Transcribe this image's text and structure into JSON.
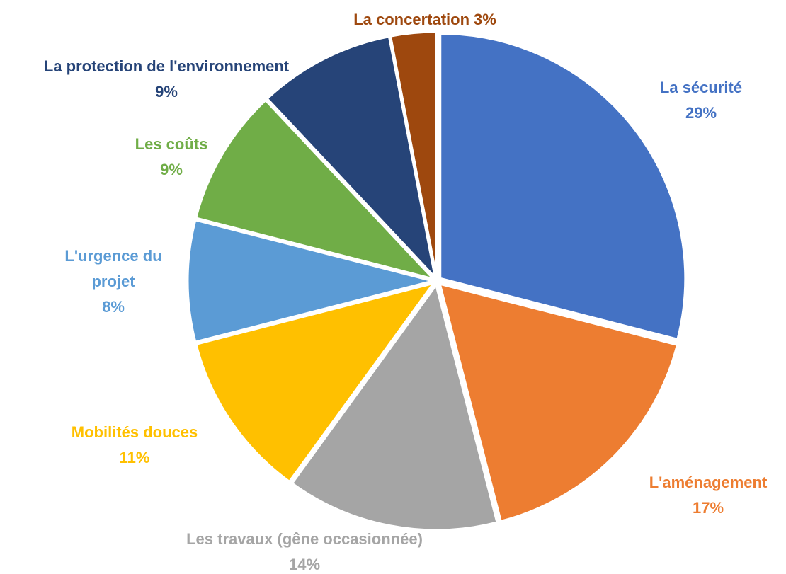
{
  "chart_data": {
    "type": "pie",
    "categories": [
      "La sécurité",
      "L'aménagement",
      "Les travaux (gêne occasionnée)",
      "Mobilités douces",
      "L'urgence du projet",
      "Les coûts",
      "La protection de l'environnement",
      "La concertation"
    ],
    "values": [
      29,
      17,
      14,
      11,
      8,
      9,
      9,
      3
    ],
    "value_labels": [
      "29%",
      "17%",
      "14%",
      "11%",
      "8%",
      "9%",
      "9%",
      "3%"
    ],
    "colors": [
      "#4472c4",
      "#ed7d31",
      "#a5a5a5",
      "#ffc000",
      "#5b9bd5",
      "#70ad47",
      "#264478",
      "#9e480e"
    ]
  }
}
